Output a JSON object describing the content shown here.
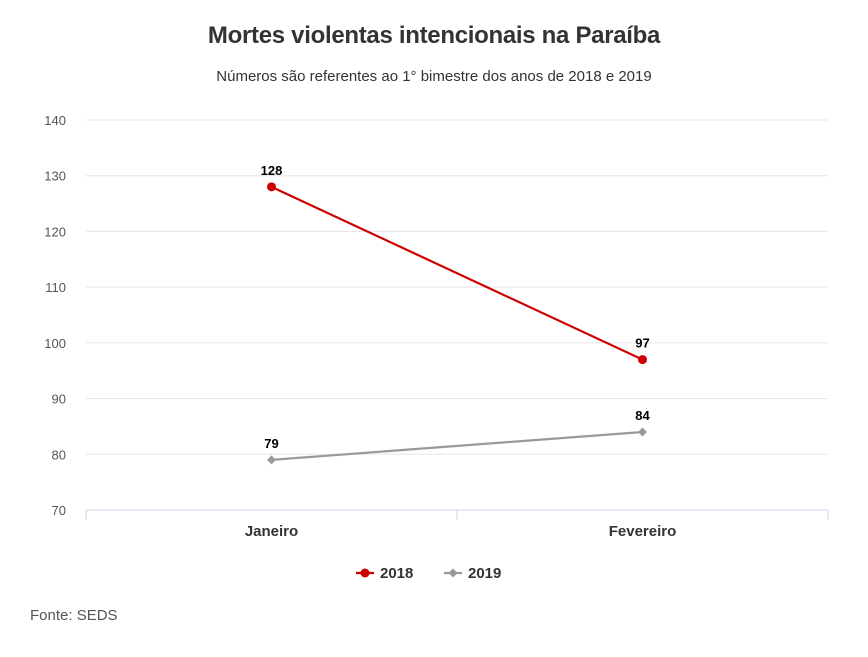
{
  "chart_data": {
    "type": "line",
    "title": "Mortes violentas intencionais na Paraíba",
    "subtitle": "Números são referentes ao 1° bimestre dos anos de 2018 e 2019",
    "categories": [
      "Janeiro",
      "Fevereiro"
    ],
    "series": [
      {
        "name": "2018",
        "values": [
          128,
          97
        ],
        "color": "#cc0000",
        "marker": "circle"
      },
      {
        "name": "2019",
        "values": [
          79,
          84
        ],
        "color": "#999999",
        "marker": "diamond"
      }
    ],
    "ylim": [
      70,
      140
    ],
    "yticks": [
      70,
      80,
      90,
      100,
      110,
      120,
      130,
      140
    ],
    "grid": true,
    "legend": "bottom-center",
    "source": "Fonte: SEDS"
  }
}
